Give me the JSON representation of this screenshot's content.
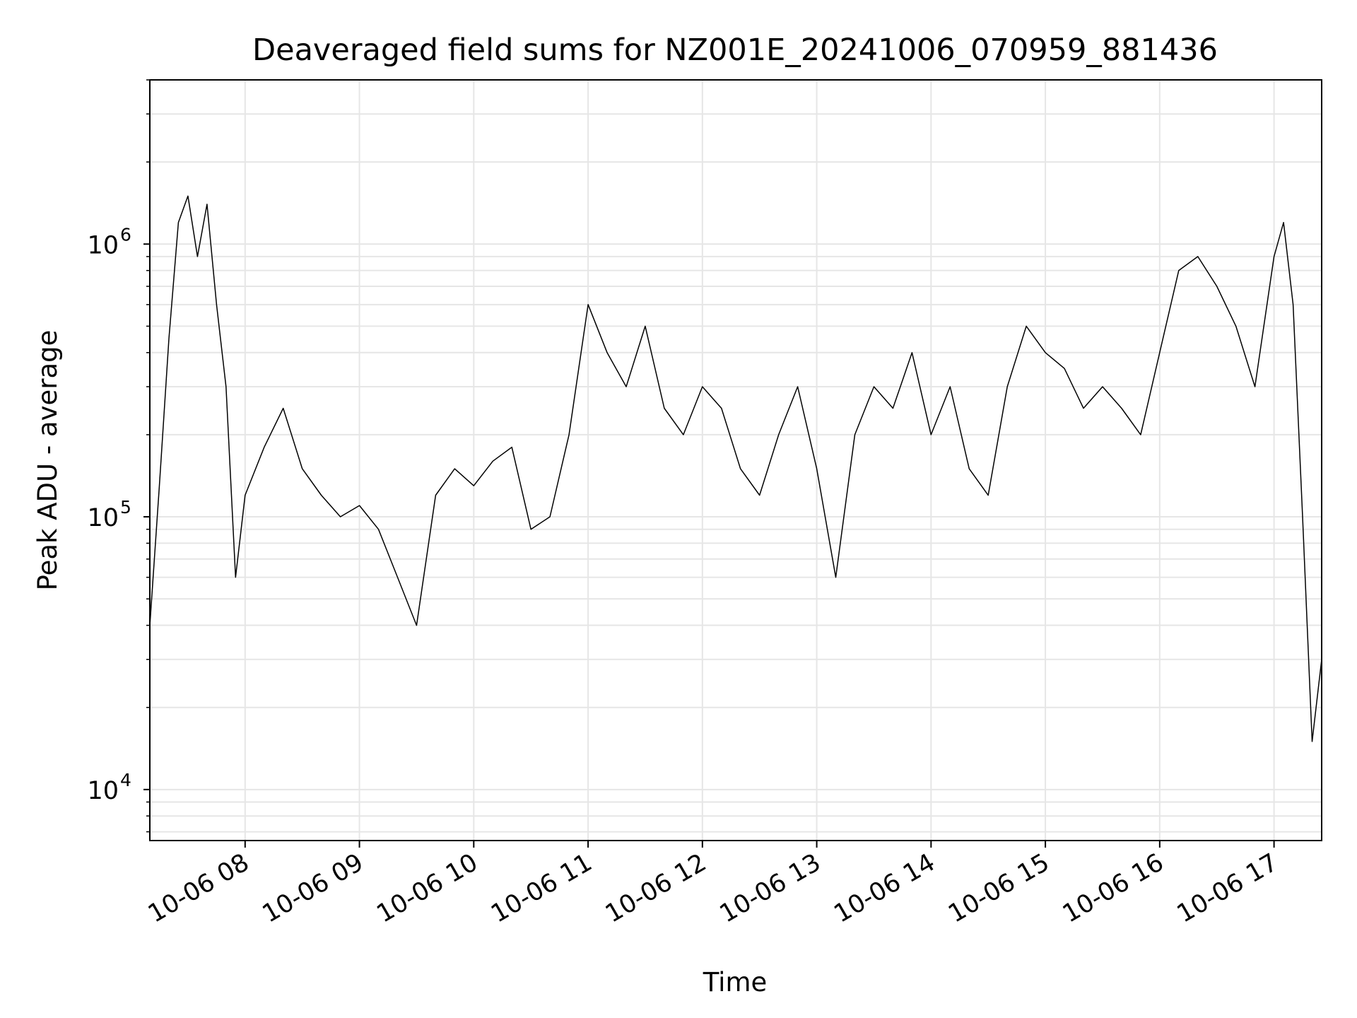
{
  "chart_data": {
    "type": "line",
    "title": "Deaveraged field sums for NZ001E_20241006_070959_881436",
    "xlabel": "Time",
    "ylabel": "Peak ADU - average",
    "yscale": "log",
    "xlim": [
      "2024-10-06 07:10",
      "2024-10-06 17:25"
    ],
    "ylim": [
      6500,
      4000000
    ],
    "grid": "on (major and minor)",
    "line_color": "#000000",
    "grid_color": "#e6e6e6",
    "x_ticks": [
      "10-06 08",
      "10-06 09",
      "10-06 10",
      "10-06 11",
      "10-06 12",
      "10-06 13",
      "10-06 14",
      "10-06 15",
      "10-06 16",
      "10-06 17"
    ],
    "y_ticks": [
      {
        "value": 10000,
        "base": "10",
        "exp": "4"
      },
      {
        "value": 100000,
        "base": "10",
        "exp": "5"
      },
      {
        "value": 1000000,
        "base": "10",
        "exp": "6"
      }
    ],
    "series": [
      {
        "x": [
          "2024-10-06 07:10",
          "2024-10-06 07:15",
          "2024-10-06 07:20",
          "2024-10-06 07:25",
          "2024-10-06 07:30",
          "2024-10-06 07:35",
          "2024-10-06 07:40",
          "2024-10-06 07:45",
          "2024-10-06 07:50",
          "2024-10-06 07:55",
          "2024-10-06 08:00",
          "2024-10-06 08:10",
          "2024-10-06 08:20",
          "2024-10-06 08:30",
          "2024-10-06 08:40",
          "2024-10-06 08:50",
          "2024-10-06 09:00",
          "2024-10-06 09:10",
          "2024-10-06 09:20",
          "2024-10-06 09:30",
          "2024-10-06 09:40",
          "2024-10-06 09:50",
          "2024-10-06 10:00",
          "2024-10-06 10:10",
          "2024-10-06 10:20",
          "2024-10-06 10:30",
          "2024-10-06 10:40",
          "2024-10-06 10:50",
          "2024-10-06 11:00",
          "2024-10-06 11:10",
          "2024-10-06 11:20",
          "2024-10-06 11:30",
          "2024-10-06 11:40",
          "2024-10-06 11:50",
          "2024-10-06 12:00",
          "2024-10-06 12:10",
          "2024-10-06 12:20",
          "2024-10-06 12:30",
          "2024-10-06 12:40",
          "2024-10-06 12:50",
          "2024-10-06 13:00",
          "2024-10-06 13:10",
          "2024-10-06 13:20",
          "2024-10-06 13:30",
          "2024-10-06 13:40",
          "2024-10-06 13:50",
          "2024-10-06 14:00",
          "2024-10-06 14:10",
          "2024-10-06 14:20",
          "2024-10-06 14:30",
          "2024-10-06 14:40",
          "2024-10-06 14:50",
          "2024-10-06 15:00",
          "2024-10-06 15:10",
          "2024-10-06 15:20",
          "2024-10-06 15:30",
          "2024-10-06 15:40",
          "2024-10-06 15:50",
          "2024-10-06 16:00",
          "2024-10-06 16:10",
          "2024-10-06 16:20",
          "2024-10-06 16:30",
          "2024-10-06 16:40",
          "2024-10-06 16:50",
          "2024-10-06 17:00",
          "2024-10-06 17:05",
          "2024-10-06 17:10",
          "2024-10-06 17:15",
          "2024-10-06 17:20",
          "2024-10-06 17:25"
        ],
        "values": [
          40000,
          130000,
          450000,
          1200000,
          1500000,
          900000,
          1400000,
          600000,
          300000,
          60000,
          120000,
          180000,
          250000,
          150000,
          120000,
          100000,
          110000,
          90000,
          60000,
          40000,
          120000,
          150000,
          130000,
          160000,
          180000,
          90000,
          100000,
          200000,
          600000,
          400000,
          300000,
          500000,
          250000,
          200000,
          300000,
          250000,
          150000,
          120000,
          200000,
          300000,
          150000,
          60000,
          200000,
          300000,
          250000,
          400000,
          200000,
          300000,
          150000,
          120000,
          300000,
          500000,
          400000,
          350000,
          250000,
          300000,
          250000,
          200000,
          400000,
          800000,
          900000,
          700000,
          500000,
          300000,
          900000,
          1200000,
          600000,
          100000,
          15000,
          30000
        ]
      }
    ]
  }
}
